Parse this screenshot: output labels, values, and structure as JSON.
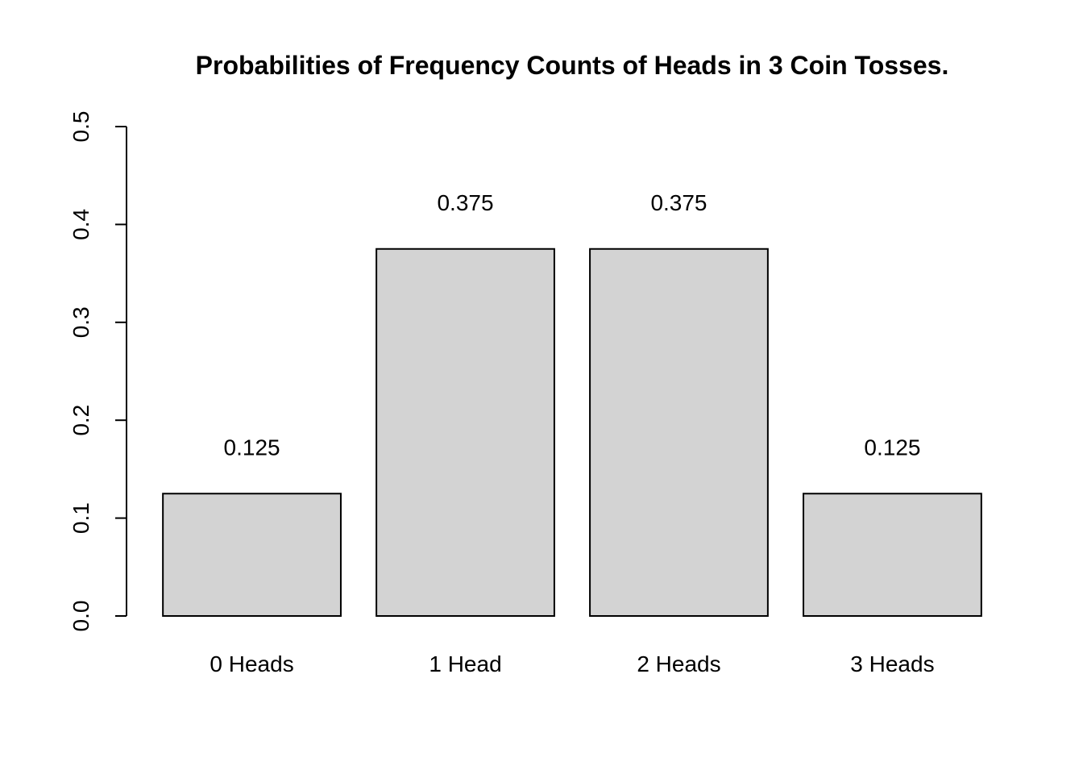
{
  "chart_data": {
    "type": "bar",
    "title": "Probabilities of Frequency Counts of Heads in 3 Coin Tosses.",
    "xlabel": "",
    "ylabel": "",
    "categories": [
      "0 Heads",
      "1 Head",
      "2 Heads",
      "3 Heads"
    ],
    "values": [
      0.125,
      0.375,
      0.375,
      0.125
    ],
    "data_labels": [
      "0.125",
      "0.375",
      "0.375",
      "0.125"
    ],
    "ylim": [
      0,
      0.5
    ],
    "yticks": [
      0.0,
      0.1,
      0.2,
      0.3,
      0.4,
      0.5
    ],
    "ytick_labels": [
      "0.0",
      "0.1",
      "0.2",
      "0.3",
      "0.4",
      "0.5"
    ],
    "grid": false,
    "bar_color": "#d3d3d3",
    "border_color": "#000000"
  }
}
